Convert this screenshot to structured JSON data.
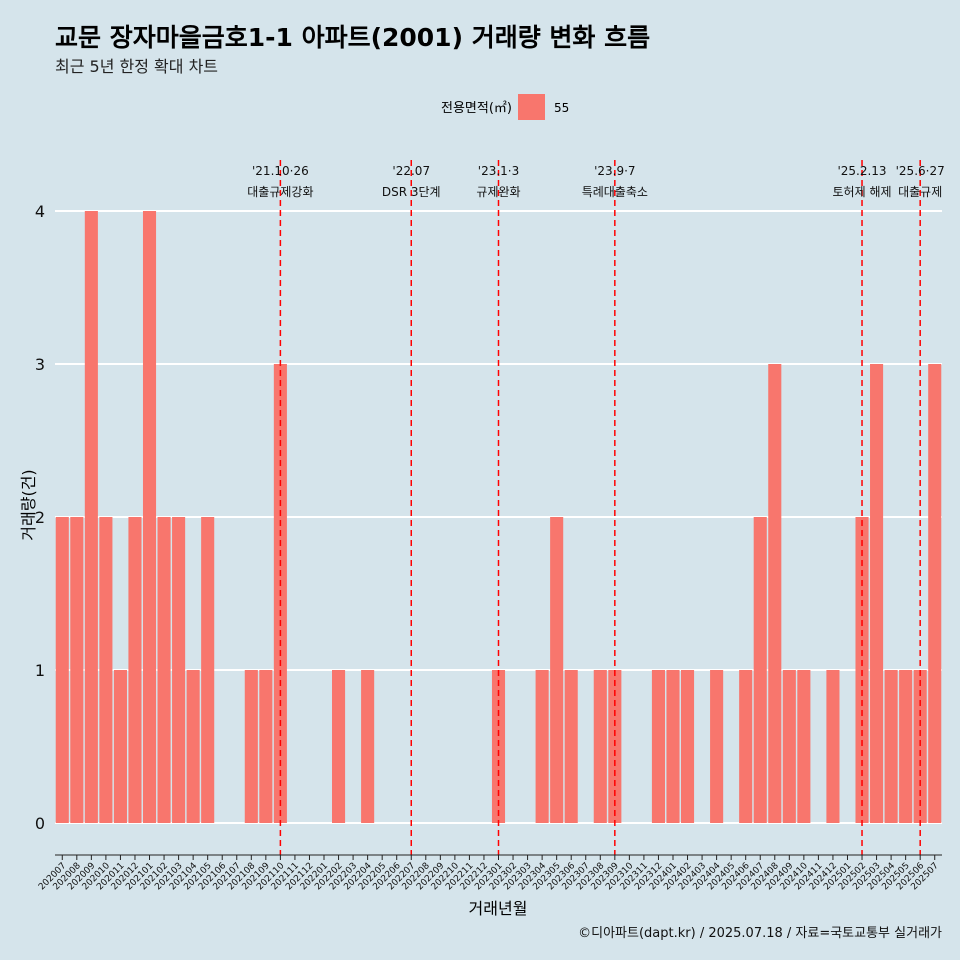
{
  "title": "교문 장자마을금호1-1 아파트(2001) 거래량 변화 흐름",
  "subtitle": "최근 5년 한정 확대 차트",
  "caption": "©디아파트(dapt.kr) / 2025.07.18 / 자료=국토교통부 실거래가",
  "colors": {
    "bar": "#f8766d",
    "background": "#d5e4eb",
    "grid": "#ffffff",
    "event_line": "#ff0000"
  },
  "chart_data": {
    "type": "bar",
    "xlabel": "거래년월",
    "ylabel": "거래량(건)",
    "ylim": [
      0,
      4
    ],
    "yticks": [
      0,
      1,
      2,
      3,
      4
    ],
    "grid": "horizontal",
    "legend": {
      "title": "전용면적(㎡)",
      "placement": "top-center"
    },
    "categories": [
      "202007",
      "202008",
      "202009",
      "202010",
      "202011",
      "202012",
      "202101",
      "202102",
      "202103",
      "202104",
      "202105",
      "202106",
      "202107",
      "202108",
      "202109",
      "202110",
      "202111",
      "202112",
      "202201",
      "202202",
      "202203",
      "202204",
      "202205",
      "202206",
      "202207",
      "202208",
      "202209",
      "202210",
      "202211",
      "202212",
      "202301",
      "202302",
      "202303",
      "202304",
      "202305",
      "202306",
      "202307",
      "202308",
      "202309",
      "202310",
      "202311",
      "202312",
      "202401",
      "202402",
      "202403",
      "202404",
      "202405",
      "202406",
      "202407",
      "202408",
      "202409",
      "202410",
      "202411",
      "202412",
      "202501",
      "202502",
      "202503",
      "202504",
      "202505",
      "202506",
      "202507"
    ],
    "series": [
      {
        "name": "55",
        "values": [
          2,
          2,
          4,
          2,
          1,
          2,
          4,
          2,
          2,
          1,
          2,
          0,
          0,
          1,
          1,
          3,
          0,
          0,
          0,
          1,
          0,
          1,
          0,
          0,
          0,
          0,
          0,
          0,
          0,
          0,
          1,
          0,
          0,
          1,
          2,
          1,
          0,
          1,
          1,
          0,
          0,
          1,
          1,
          1,
          0,
          1,
          0,
          1,
          2,
          3,
          1,
          1,
          0,
          1,
          0,
          2,
          3,
          1,
          1,
          1,
          3
        ]
      }
    ],
    "events": [
      {
        "x": "202110",
        "date": "'21.10·26",
        "label": "대출규제강화"
      },
      {
        "x": "202207",
        "date": "'22.07",
        "label": "DSR 3단계"
      },
      {
        "x": "202301",
        "date": "'23.1·3",
        "label": "규제완화"
      },
      {
        "x": "202309",
        "date": "'23.9·7",
        "label": "특례대출축소"
      },
      {
        "x": "202502",
        "date": "'25.2.13",
        "label": "토허제 해제"
      },
      {
        "x": "202506",
        "date": "'25.6·27",
        "label": "대출규제"
      }
    ]
  }
}
